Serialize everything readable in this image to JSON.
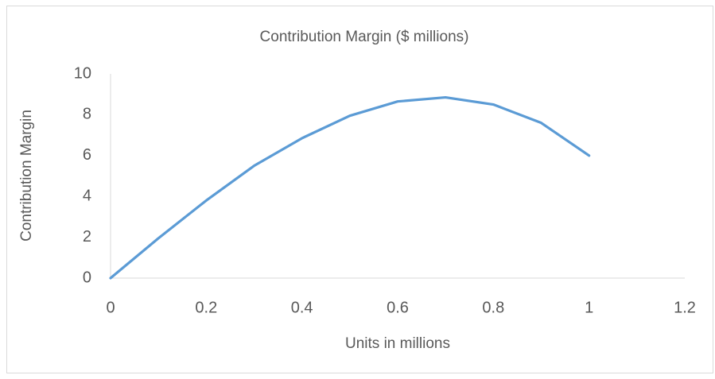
{
  "chart_data": {
    "type": "line",
    "title": "Contribution Margin ($ millions)",
    "xlabel": "Units in millions",
    "ylabel": "Contribution Margin",
    "x": [
      0,
      0.1,
      0.2,
      0.3,
      0.4,
      0.5,
      0.6,
      0.7,
      0.8,
      0.9,
      1
    ],
    "series": [
      {
        "name": "Contribution Margin",
        "color": "#5b9bd5",
        "values": [
          0,
          1.95,
          3.8,
          5.5,
          6.85,
          7.95,
          8.65,
          8.85,
          8.5,
          7.6,
          6.0
        ]
      }
    ],
    "xlim": [
      0,
      1.2
    ],
    "xticks": [
      0,
      0.2,
      0.4,
      0.6,
      0.8,
      1,
      1.2
    ],
    "ylim": [
      0,
      10
    ],
    "yticks": [
      0,
      2,
      4,
      6,
      8,
      10
    ],
    "grid": false
  }
}
